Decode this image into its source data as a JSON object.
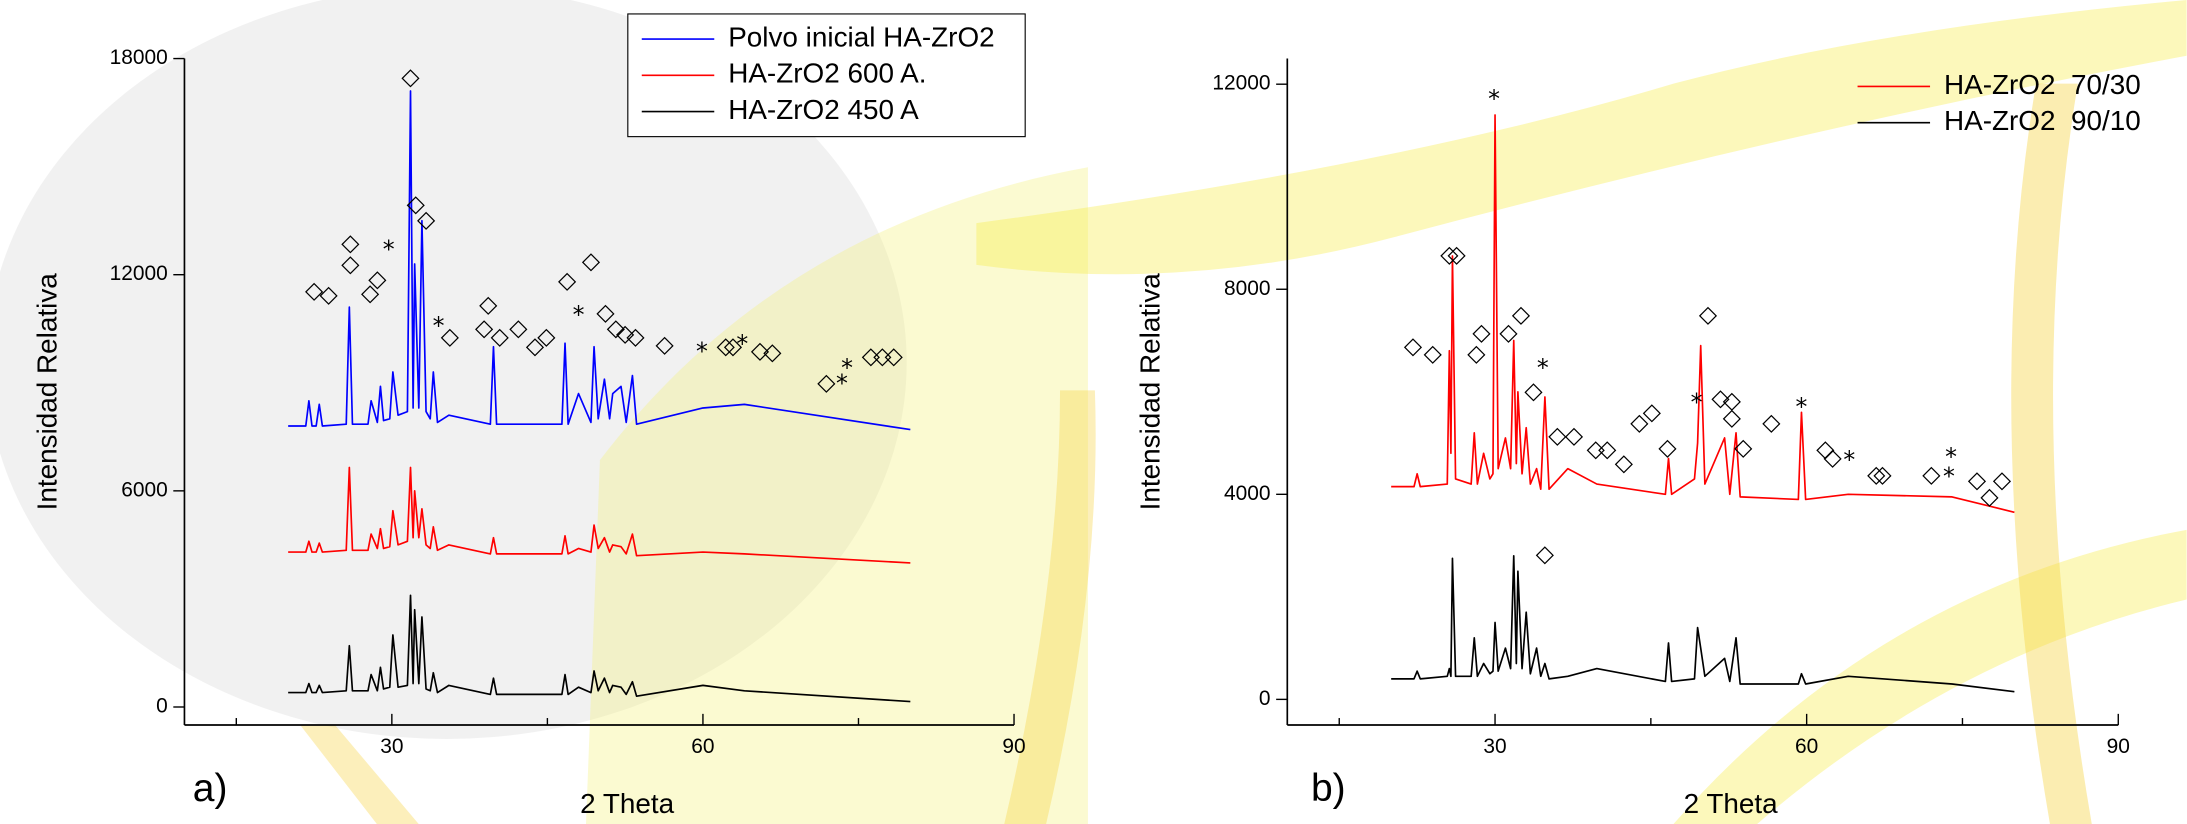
{
  "chart_data": [
    {
      "type": "line",
      "label": "a)",
      "xlabel": "2 Theta",
      "ylabel": "Intensidad Relativa",
      "xlim": [
        10,
        90
      ],
      "xticks": [
        30,
        60,
        90
      ],
      "xminorticks": [
        15,
        45,
        75
      ],
      "ylim": [
        -500,
        18000
      ],
      "yticks": [
        0,
        6000,
        12000,
        18000
      ],
      "legend": "top-right",
      "x": [
        20,
        21.7,
        22,
        22.3,
        22.7,
        23,
        23.3,
        25.6,
        25.9,
        26.2,
        27.7,
        28,
        28.6,
        28.9,
        29.2,
        29.8,
        30.1,
        30.6,
        31.5,
        31.8,
        32.05,
        32.2,
        32.6,
        32.9,
        33.3,
        33.7,
        34,
        34.4,
        35.5,
        39.5,
        39.8,
        40.1,
        46.4,
        46.7,
        47,
        48,
        49.2,
        49.5,
        49.9,
        50.5,
        51,
        51.3,
        52.1,
        52.6,
        53.2,
        53.6,
        60,
        64,
        80
      ],
      "series": [
        {
          "name": "Polvo inicial HA-ZrO2",
          "color": "#0000ff",
          "values": [
            7800,
            7800,
            8500,
            7800,
            7800,
            8400,
            7800,
            7850,
            11100,
            7850,
            7850,
            8500,
            7900,
            8900,
            7950,
            8000,
            9300,
            8100,
            8200,
            17100,
            8300,
            12300,
            8300,
            13500,
            8200,
            8000,
            9300,
            7900,
            8100,
            7850,
            10000,
            7850,
            7850,
            10100,
            7850,
            8700,
            7900,
            10000,
            8000,
            9100,
            8000,
            8700,
            8900,
            7900,
            9200,
            7850,
            8300,
            8400,
            7700
          ]
        },
        {
          "name": "HA-ZrO2 600 A.",
          "color": "#ff0000",
          "values": [
            4300,
            4300,
            4600,
            4300,
            4300,
            4550,
            4300,
            4350,
            6650,
            4350,
            4350,
            4800,
            4400,
            4950,
            4400,
            4450,
            5450,
            4500,
            4600,
            6650,
            4700,
            6000,
            4700,
            5500,
            4500,
            4400,
            5000,
            4350,
            4500,
            4250,
            4700,
            4250,
            4250,
            4750,
            4250,
            4400,
            4300,
            5050,
            4400,
            4700,
            4300,
            4500,
            4450,
            4250,
            4800,
            4200,
            4300,
            4250,
            4000
          ]
        },
        {
          "name": "HA-ZrO2 450 A",
          "color": "#000000",
          "values": [
            400,
            400,
            650,
            400,
            400,
            600,
            400,
            450,
            1700,
            450,
            450,
            900,
            450,
            1100,
            500,
            550,
            2000,
            550,
            600,
            3100,
            650,
            2700,
            650,
            2500,
            500,
            450,
            950,
            400,
            600,
            350,
            800,
            350,
            350,
            900,
            350,
            550,
            400,
            1000,
            450,
            800,
            400,
            600,
            550,
            350,
            700,
            300,
            600,
            450,
            150
          ]
        }
      ],
      "annotations": [
        {
          "x": 22.5,
          "y": 11540,
          "text": "◇"
        },
        {
          "x": 23.9,
          "y": 11420,
          "text": "◇"
        },
        {
          "x": 26.0,
          "y": 12850,
          "text": "◇"
        },
        {
          "x": 26.0,
          "y": 12270,
          "text": "◇"
        },
        {
          "x": 27.9,
          "y": 11460,
          "text": "◇"
        },
        {
          "x": 28.6,
          "y": 11850,
          "text": "◇"
        },
        {
          "x": 31.8,
          "y": 17460,
          "text": "◇"
        },
        {
          "x": 32.3,
          "y": 13940,
          "text": "◇"
        },
        {
          "x": 33.3,
          "y": 13510,
          "text": "◇"
        },
        {
          "x": 35.6,
          "y": 10260,
          "text": "◇"
        },
        {
          "x": 38.9,
          "y": 10490,
          "text": "◇"
        },
        {
          "x": 39.3,
          "y": 11150,
          "text": "◇"
        },
        {
          "x": 40.4,
          "y": 10260,
          "text": "◇"
        },
        {
          "x": 42.2,
          "y": 10490,
          "text": "◇"
        },
        {
          "x": 43.8,
          "y": 9990,
          "text": "◇"
        },
        {
          "x": 44.9,
          "y": 10260,
          "text": "◇"
        },
        {
          "x": 46.9,
          "y": 11810,
          "text": "◇"
        },
        {
          "x": 49.2,
          "y": 12350,
          "text": "◇"
        },
        {
          "x": 50.6,
          "y": 10920,
          "text": "◇"
        },
        {
          "x": 51.6,
          "y": 10490,
          "text": "◇"
        },
        {
          "x": 52.5,
          "y": 10340,
          "text": "◇"
        },
        {
          "x": 53.5,
          "y": 10260,
          "text": "◇"
        },
        {
          "x": 56.3,
          "y": 10030,
          "text": "◇"
        },
        {
          "x": 62.2,
          "y": 9990,
          "text": "◇"
        },
        {
          "x": 62.9,
          "y": 9990,
          "text": "◇"
        },
        {
          "x": 65.5,
          "y": 9870,
          "text": "◇"
        },
        {
          "x": 66.7,
          "y": 9830,
          "text": "◇"
        },
        {
          "x": 71.9,
          "y": 8980,
          "text": "◇"
        },
        {
          "x": 76.2,
          "y": 9720,
          "text": "◇"
        },
        {
          "x": 77.3,
          "y": 9720,
          "text": "◇"
        },
        {
          "x": 78.4,
          "y": 9720,
          "text": "◇"
        },
        {
          "x": 29.7,
          "y": 12660,
          "text": "*"
        },
        {
          "x": 34.5,
          "y": 10530,
          "text": "*"
        },
        {
          "x": 48.0,
          "y": 10840,
          "text": "*"
        },
        {
          "x": 59.9,
          "y": 9830,
          "text": "*"
        },
        {
          "x": 63.8,
          "y": 10030,
          "text": "*"
        },
        {
          "x": 73.4,
          "y": 8940,
          "text": "*"
        },
        {
          "x": 73.9,
          "y": 9370,
          "text": "*"
        }
      ]
    },
    {
      "type": "line",
      "label": "b)",
      "xlabel": "2 Theta",
      "ylabel": "Intensidad Relativa",
      "xlim": [
        10,
        90
      ],
      "xticks": [
        30,
        60,
        90
      ],
      "xminorticks": [
        15,
        45,
        75
      ],
      "ylim": [
        -500,
        12500
      ],
      "yticks": [
        0,
        4000,
        8000,
        12000
      ],
      "legend": "top-right",
      "x": [
        20,
        22.2,
        22.5,
        22.8,
        25.4,
        25.6,
        25.75,
        25.9,
        26.2,
        27.7,
        28,
        28.3,
        28.9,
        29.5,
        29.8,
        30,
        30.3,
        31,
        31.5,
        31.8,
        32.05,
        32.2,
        32.6,
        33,
        33.4,
        34,
        34.4,
        34.8,
        35.2,
        37,
        39.8,
        46.4,
        46.7,
        47,
        49.2,
        49.5,
        49.8,
        50.2,
        52.1,
        52.6,
        53.2,
        53.6,
        59.2,
        59.5,
        59.9,
        64,
        74,
        80
      ],
      "series": [
        {
          "name": "HA-ZrO2  70/30",
          "color": "#ff0000",
          "values": [
            4150,
            4150,
            4400,
            4150,
            4200,
            6800,
            4800,
            8650,
            4300,
            4200,
            5200,
            4200,
            4800,
            4300,
            4400,
            11400,
            4500,
            5100,
            4500,
            7000,
            4600,
            6000,
            4400,
            5300,
            4200,
            4500,
            4100,
            5900,
            4100,
            4500,
            4200,
            4000,
            4700,
            4000,
            4300,
            5000,
            6900,
            4200,
            5100,
            4000,
            5200,
            3950,
            3900,
            5600,
            3900,
            4000,
            3950,
            3650
          ]
        },
        {
          "name": "HA-ZrO2  90/10",
          "color": "#000000",
          "values": [
            400,
            400,
            550,
            400,
            450,
            600,
            450,
            2750,
            450,
            450,
            1200,
            450,
            700,
            500,
            550,
            1500,
            550,
            1000,
            600,
            2800,
            700,
            2500,
            600,
            1700,
            500,
            1000,
            450,
            700,
            400,
            450,
            600,
            350,
            1100,
            350,
            400,
            1400,
            1000,
            450,
            800,
            350,
            1200,
            300,
            300,
            500,
            300,
            450,
            300,
            150
          ]
        }
      ],
      "annotations": [
        {
          "x": 22.1,
          "y": 6870,
          "text": "◇"
        },
        {
          "x": 24.0,
          "y": 6730,
          "text": "◇"
        },
        {
          "x": 25.6,
          "y": 8660,
          "text": "◇"
        },
        {
          "x": 26.3,
          "y": 8660,
          "text": "◇"
        },
        {
          "x": 28.2,
          "y": 6730,
          "text": "◇"
        },
        {
          "x": 28.7,
          "y": 7140,
          "text": "◇"
        },
        {
          "x": 31.3,
          "y": 7140,
          "text": "◇"
        },
        {
          "x": 32.5,
          "y": 7490,
          "text": "◇"
        },
        {
          "x": 33.7,
          "y": 6000,
          "text": "◇"
        },
        {
          "x": 36.0,
          "y": 5130,
          "text": "◇"
        },
        {
          "x": 37.6,
          "y": 5130,
          "text": "◇"
        },
        {
          "x": 39.7,
          "y": 4860,
          "text": "◇"
        },
        {
          "x": 40.8,
          "y": 4860,
          "text": "◇"
        },
        {
          "x": 42.4,
          "y": 4590,
          "text": "◇"
        },
        {
          "x": 43.9,
          "y": 5380,
          "text": "◇"
        },
        {
          "x": 45.1,
          "y": 5590,
          "text": "◇"
        },
        {
          "x": 46.6,
          "y": 4890,
          "text": "◇"
        },
        {
          "x": 50.5,
          "y": 7490,
          "text": "◇"
        },
        {
          "x": 51.7,
          "y": 5860,
          "text": "◇"
        },
        {
          "x": 52.8,
          "y": 5810,
          "text": "◇"
        },
        {
          "x": 52.8,
          "y": 5480,
          "text": "◇"
        },
        {
          "x": 53.9,
          "y": 4890,
          "text": "◇"
        },
        {
          "x": 56.6,
          "y": 5380,
          "text": "◇"
        },
        {
          "x": 61.8,
          "y": 4860,
          "text": "◇"
        },
        {
          "x": 62.5,
          "y": 4700,
          "text": "◇"
        },
        {
          "x": 66.7,
          "y": 4370,
          "text": "◇"
        },
        {
          "x": 67.3,
          "y": 4370,
          "text": "◇"
        },
        {
          "x": 72.0,
          "y": 4370,
          "text": "◇"
        },
        {
          "x": 76.4,
          "y": 4260,
          "text": "◇"
        },
        {
          "x": 77.6,
          "y": 3940,
          "text": "◇"
        },
        {
          "x": 78.8,
          "y": 4260,
          "text": "◇"
        },
        {
          "x": 34.8,
          "y": 2820,
          "text": "◇"
        },
        {
          "x": 29.9,
          "y": 11680,
          "text": "*"
        },
        {
          "x": 34.6,
          "y": 6430,
          "text": "*"
        },
        {
          "x": 49.4,
          "y": 5760,
          "text": "*"
        },
        {
          "x": 59.5,
          "y": 5670,
          "text": "*"
        },
        {
          "x": 64.1,
          "y": 4640,
          "text": "*"
        },
        {
          "x": 73.9,
          "y": 4700,
          "text": "*"
        },
        {
          "x": 73.7,
          "y": 4320,
          "text": "*"
        }
      ]
    }
  ]
}
